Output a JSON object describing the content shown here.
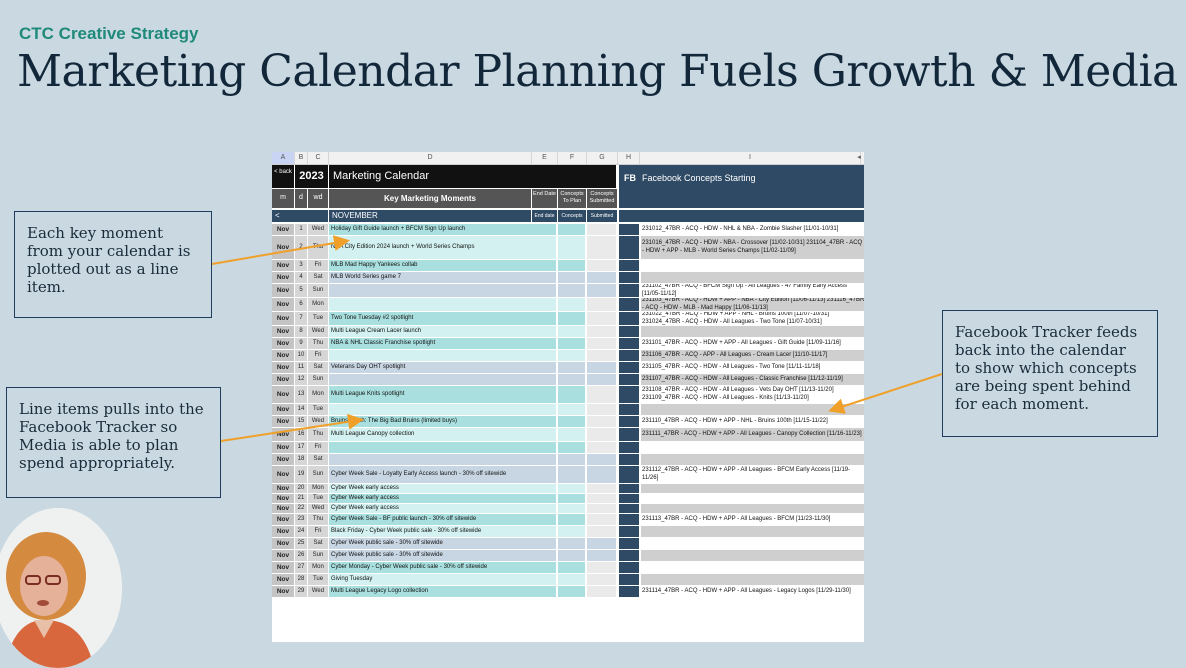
{
  "brand": "CTC Creative Strategy",
  "title": "Marketing Calendar Planning Fuels Growth & Media",
  "colors": {
    "teal": "#a9e0df",
    "tealLight": "#d3f1f0",
    "blue": "#c8d6e3",
    "navy": "#2f4a65",
    "gray": "#cfcfcf",
    "accent": "#1f8a7a",
    "arrow": "#f0a028"
  },
  "sheet": {
    "col_letters": [
      "A",
      "B",
      "C",
      "D",
      "E",
      "F",
      "G",
      "H",
      "I"
    ],
    "back": "< back",
    "year": "2023",
    "calendar_title": "Marketing Calendar",
    "sub_m": "m",
    "sub_d": "d",
    "sub_wd": "wd",
    "key_moments": "Key Marketing Moments",
    "end_date_hdr": "End Date",
    "concepts_hdr": "Concepts To Plan",
    "submitted_hdr": "Concepts Submitted",
    "fb_label": "FB",
    "fb_title": "Facebook Concepts Starting",
    "nav_left": "<",
    "month": "NOVEMBER",
    "end_date_small": "End date",
    "concepts_small": "Concepts",
    "submitted_small": "Submitted"
  },
  "rows": [
    {
      "m": "Nov",
      "d": "1",
      "wd": "Wed",
      "event": "Holiday Gift Guide launch + BFCM Sign Up launch",
      "fb": "231012_47BR - ACQ - HDW - NHL & NBA - Zombie Slasher [11/01-10/31]",
      "t": "teal",
      "fbbg": "white"
    },
    {
      "m": "Nov",
      "d": "2",
      "wd": "Thu",
      "event": "NBA City Edition 2024 launch + World Series Champs",
      "fb": "231016_47BR - ACQ - HDW - NBA - Crossover [11/02-10/31] 231104_47BR - ACQ - HDW + APP - MLB - World Series Champs [11/02-11/09]",
      "t": "tealLight",
      "fbbg": "gray"
    },
    {
      "m": "Nov",
      "d": "3",
      "wd": "Fri",
      "event": "MLB Mad Happy Yankees collab",
      "fb": "",
      "t": "teal",
      "fbbg": "white"
    },
    {
      "m": "Nov",
      "d": "4",
      "wd": "Sat",
      "event": "MLB World Series game 7",
      "fb": "",
      "t": "blue",
      "fbbg": "gray"
    },
    {
      "m": "Nov",
      "d": "5",
      "wd": "Sun",
      "event": "",
      "fb": "231102_47BR - ACQ - BFCM Sign Up - All Leagues - 47 Family Early Access [11/05-11/12]",
      "t": "blue",
      "fbbg": "white"
    },
    {
      "m": "Nov",
      "d": "6",
      "wd": "Mon",
      "event": "",
      "fb": "231103_47BR - ACQ - HDW + APP - NBA - City Edition [11/06-11/13] 231116_47BR - ACQ - HDW - MLB - Mad Happy [11/06-11/13]",
      "t": "tealLight",
      "fbbg": "gray"
    },
    {
      "m": "Nov",
      "d": "7",
      "wd": "Tue",
      "event": "Two Tone Tuesday #2 spotlight",
      "fb": "231022_47BR - ACQ - HDW + APP - NHL - Bruins 100th [11/07-10/31] 231024_47BR - ACQ - HDW - All Leagues - Two Tone [11/07-10/31]",
      "t": "teal",
      "fbbg": "white"
    },
    {
      "m": "Nov",
      "d": "8",
      "wd": "Wed",
      "event": "Multi League Cream Lacer launch",
      "fb": "",
      "t": "tealLight",
      "fbbg": "gray"
    },
    {
      "m": "Nov",
      "d": "9",
      "wd": "Thu",
      "event": "NBA & NHL Classic Franchise spotlight",
      "fb": "231101_47BR - ACQ - HDW + APP - All Leagues - Gift Guide [11/09-11/16]",
      "t": "teal",
      "fbbg": "white"
    },
    {
      "m": "Nov",
      "d": "10",
      "wd": "Fri",
      "event": "",
      "fb": "231106_47BR - ACQ - APP - All Leagues - Cream Lacer [11/10-11/17]",
      "t": "tealLight",
      "fbbg": "gray"
    },
    {
      "m": "Nov",
      "d": "11",
      "wd": "Sat",
      "event": "Veterans Day OHT spotlight",
      "fb": "231105_47BR - ACQ - HDW - All Leagues - Two Tone [11/11-11/18]",
      "t": "blue",
      "fbbg": "white"
    },
    {
      "m": "Nov",
      "d": "12",
      "wd": "Sun",
      "event": "",
      "fb": "231107_47BR - ACQ - HDW - All Leagues - Classic Franchise [11/12-11/19]",
      "t": "blue",
      "fbbg": "gray"
    },
    {
      "m": "Nov",
      "d": "13",
      "wd": "Mon",
      "event": "Multi League Knits spotlight",
      "fb": "231108_47BR - ACQ - HDW - All Leagues - Vets Day OHT [11/13-11/20] 231109_47BR - ACQ - HDW - All Leagues - Knits [11/13-11/20]",
      "t": "teal",
      "fbbg": "white"
    },
    {
      "m": "Nov",
      "d": "14",
      "wd": "Tue",
      "event": "",
      "fb": "",
      "t": "tealLight",
      "fbbg": "gray"
    },
    {
      "m": "Nov",
      "d": "15",
      "wd": "Wed",
      "event": "Bruins 100th: The Big Bad Bruins (limited buys)",
      "fb": "231110_47BR - ACQ - HDW + APP - NHL - Bruins 100th [11/15-11/22]",
      "t": "teal",
      "fbbg": "white"
    },
    {
      "m": "Nov",
      "d": "16",
      "wd": "Thu",
      "event": "Multi League Canopy collection",
      "fb": "231111_47BR - ACQ - HDW + APP - All Leagues - Canopy Collection [11/16-11/23]",
      "t": "tealLight",
      "fbbg": "gray"
    },
    {
      "m": "Nov",
      "d": "17",
      "wd": "Fri",
      "event": "",
      "fb": "",
      "t": "teal",
      "fbbg": "white"
    },
    {
      "m": "Nov",
      "d": "18",
      "wd": "Sat",
      "event": "",
      "fb": "",
      "t": "blue",
      "fbbg": "gray"
    },
    {
      "m": "Nov",
      "d": "19",
      "wd": "Sun",
      "event": "Cyber Week Sale - Loyalty Early Access launch - 30% off sitewide",
      "fb": "231112_47BR - ACQ - HDW + APP - All Leagues - BFCM Early Access [11/19-11/26]",
      "t": "blue",
      "fbbg": "white"
    },
    {
      "m": "Nov",
      "d": "20",
      "wd": "Mon",
      "event": "Cyber Week early access",
      "fb": "",
      "t": "tealLight",
      "fbbg": "gray"
    },
    {
      "m": "Nov",
      "d": "21",
      "wd": "Tue",
      "event": "Cyber Week early access",
      "fb": "",
      "t": "teal",
      "fbbg": "white"
    },
    {
      "m": "Nov",
      "d": "22",
      "wd": "Wed",
      "event": "Cyber Week early access",
      "fb": "",
      "t": "tealLight",
      "fbbg": "gray"
    },
    {
      "m": "Nov",
      "d": "23",
      "wd": "Thu",
      "event": "Cyber Week Sale - BF public launch - 30% off sitewide",
      "fb": "231113_47BR - ACQ - HDW + APP - All Leagues - BFCM [11/23-11/30]",
      "t": "teal",
      "fbbg": "white"
    },
    {
      "m": "Nov",
      "d": "24",
      "wd": "Fri",
      "event": "Black Friday - Cyber Week public sale - 30% off sitewide",
      "fb": "",
      "t": "tealLight",
      "fbbg": "gray"
    },
    {
      "m": "Nov",
      "d": "25",
      "wd": "Sat",
      "event": "Cyber Week public sale - 30% off sitewide",
      "fb": "",
      "t": "blue",
      "fbbg": "white"
    },
    {
      "m": "Nov",
      "d": "26",
      "wd": "Sun",
      "event": "Cyber Week public sale - 30% off sitewide",
      "fb": "",
      "t": "blue",
      "fbbg": "gray"
    },
    {
      "m": "Nov",
      "d": "27",
      "wd": "Mon",
      "event": "Cyber Monday - Cyber Week public sale - 30% off sitewide",
      "fb": "",
      "t": "teal",
      "fbbg": "white"
    },
    {
      "m": "Nov",
      "d": "28",
      "wd": "Tue",
      "event": "Giving Tuesday",
      "fb": "",
      "t": "tealLight",
      "fbbg": "gray"
    },
    {
      "m": "Nov",
      "d": "29",
      "wd": "Wed",
      "event": "Multi League Legacy Logo collection",
      "fb": "231114_47BR - ACQ - HDW + APP - All Leagues - Legacy Logos [11/29-11/30]",
      "t": "teal",
      "fbbg": "white"
    }
  ],
  "annotations": {
    "key_moment": "Each key moment from your calendar is plotted out as a line item.",
    "line_items": "Line items pulls into the Facebook Tracker so Media is able to plan spend appropriately.",
    "fb_tracker": "Facebook Tracker feeds back into the calendar to show which concepts are being spent behind for each moment."
  }
}
